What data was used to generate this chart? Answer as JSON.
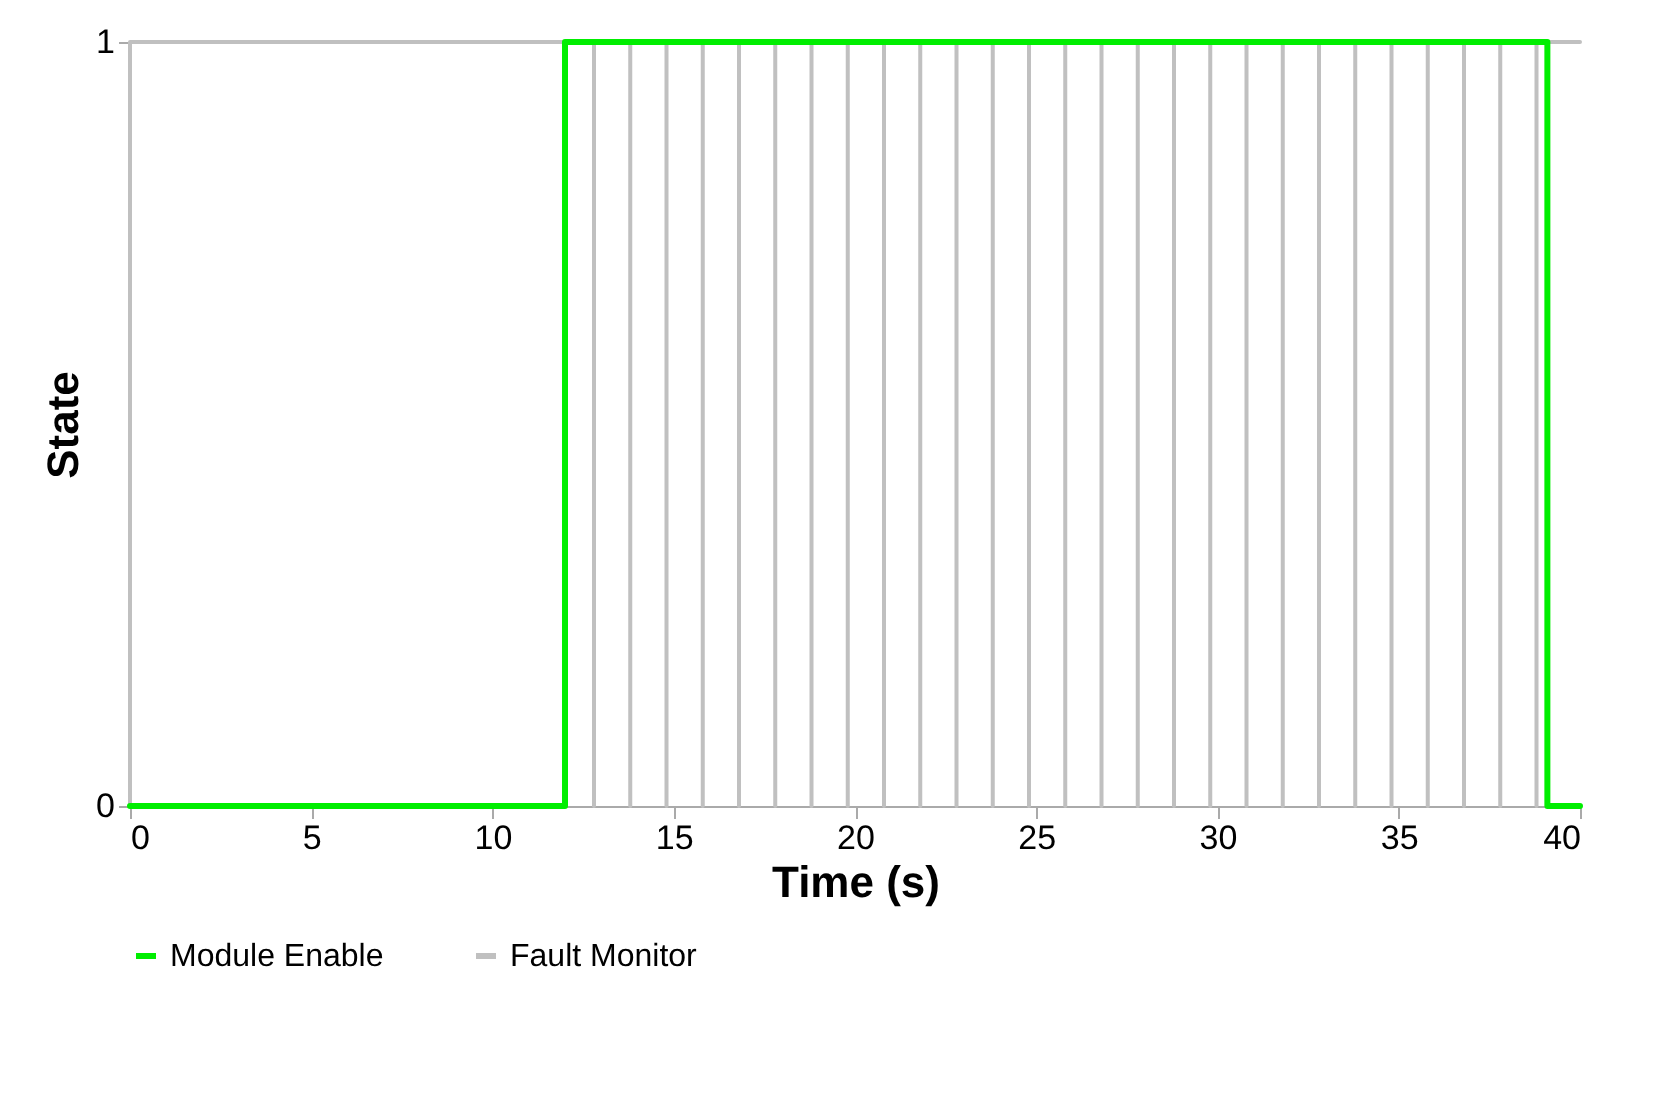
{
  "chart_data": {
    "type": "line",
    "xlabel": "Time (s)",
    "ylabel": "State",
    "xlim": [
      0,
      40
    ],
    "xticks": [
      0,
      5,
      10,
      15,
      20,
      25,
      30,
      35,
      40
    ],
    "ylim": [
      0,
      1
    ],
    "yticks": [
      0,
      1
    ],
    "grid": false,
    "legend": "bottom",
    "marker": "none",
    "line_style": "solid",
    "series": [
      {
        "name": "Module Enable",
        "color": "#00ee00",
        "x": [
          0,
          12,
          12,
          39.1,
          39.1,
          40
        ],
        "values": [
          0,
          0,
          1,
          1,
          0,
          0
        ]
      },
      {
        "name": "Fault Monitor",
        "color": "#c0c0c0",
        "x": [
          0,
          0,
          12.8,
          12.8,
          12.8,
          13.8,
          13.8,
          13.8,
          14.8,
          14.8,
          14.8,
          15.8,
          15.8,
          15.8,
          16.8,
          16.8,
          16.8,
          17.8,
          17.8,
          17.8,
          18.8,
          18.8,
          18.8,
          19.8,
          19.8,
          19.8,
          20.8,
          20.8,
          20.8,
          21.8,
          21.8,
          21.8,
          22.8,
          22.8,
          22.8,
          23.8,
          23.8,
          23.8,
          24.8,
          24.8,
          24.8,
          25.8,
          25.8,
          25.8,
          26.8,
          26.8,
          26.8,
          27.8,
          27.8,
          27.8,
          28.8,
          28.8,
          28.8,
          29.8,
          29.8,
          29.8,
          30.8,
          30.8,
          30.8,
          31.8,
          31.8,
          31.8,
          32.8,
          32.8,
          32.8,
          33.8,
          33.8,
          33.8,
          34.8,
          34.8,
          34.8,
          35.8,
          35.8,
          35.8,
          36.8,
          36.8,
          36.8,
          37.8,
          37.8,
          37.8,
          38.8,
          38.8,
          38.8,
          40
        ],
        "values": [
          0,
          1,
          1,
          0,
          1,
          1,
          0,
          1,
          1,
          0,
          1,
          1,
          0,
          1,
          1,
          0,
          1,
          1,
          0,
          1,
          1,
          0,
          1,
          1,
          0,
          1,
          1,
          0,
          1,
          1,
          0,
          1,
          1,
          0,
          1,
          1,
          0,
          1,
          1,
          0,
          1,
          1,
          0,
          1,
          1,
          0,
          1,
          1,
          0,
          1,
          1,
          0,
          1,
          1,
          0,
          1,
          1,
          0,
          1,
          1,
          0,
          1,
          1,
          0,
          1,
          1,
          0,
          1,
          1,
          0,
          1,
          1,
          0,
          1,
          1,
          0,
          1,
          1,
          0,
          1,
          1,
          0,
          1,
          1
        ]
      }
    ]
  }
}
